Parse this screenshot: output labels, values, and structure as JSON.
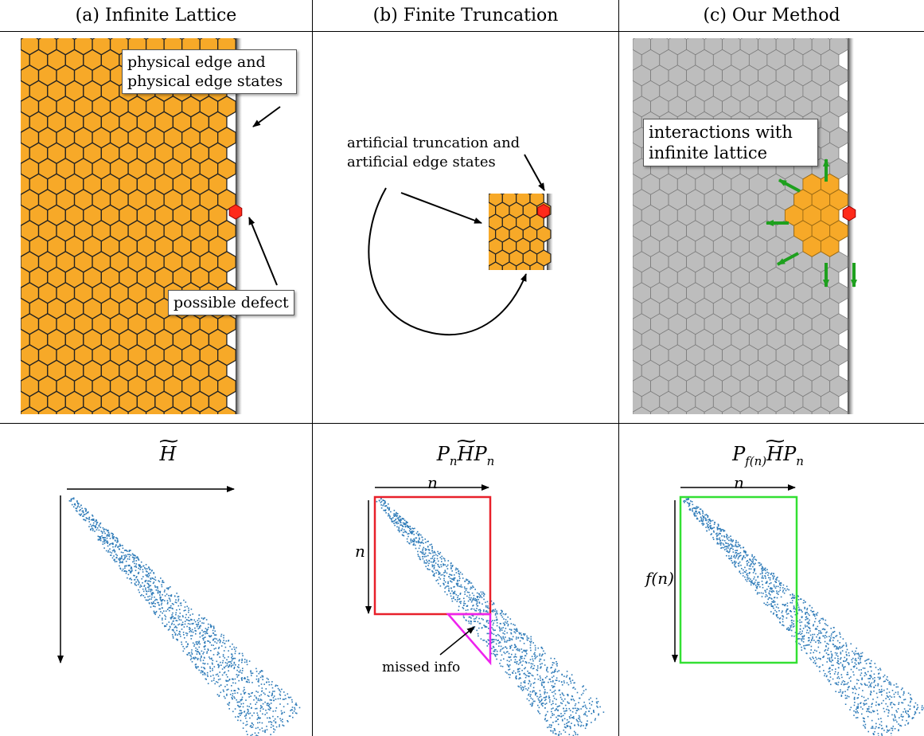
{
  "columns": [
    {
      "title": "(a) Infinite Lattice"
    },
    {
      "title": "(b) Finite Truncation"
    },
    {
      "title": "(c) Our Method"
    }
  ],
  "panel_a": {
    "callout_edge_line1": "physical edge and",
    "callout_edge_line2": "physical edge states",
    "callout_defect": "possible defect"
  },
  "panel_b": {
    "label_line1": "artificial truncation and",
    "label_line2": "artificial edge states"
  },
  "panel_c": {
    "callout_line1": "interactions with",
    "callout_line2": "infinite lattice"
  },
  "bottom": {
    "eq_a": {
      "main": "H"
    },
    "eq_b": {
      "p1": "P",
      "s1": "n",
      "h": "H",
      "p2": "P",
      "s2": "n"
    },
    "eq_c": {
      "p1": "P",
      "s1": "f(n)",
      "h": "H",
      "p2": "P",
      "s2": "n"
    },
    "n_label_b_top": "n",
    "n_label_b_side": "n",
    "n_label_c_top": "n",
    "fn_label_c_side": "f(n)",
    "missed_info": "missed info"
  },
  "colors": {
    "hex_fill": "#F7A928",
    "hex_gray": "#BDBDBD",
    "defect": "#FF2A1A",
    "arrow_green": "#1EA01E",
    "box_red": "#E8202A",
    "triangle_magenta": "#EE22EE",
    "box_green": "#33E033",
    "scatter_blue": "#2E7BB8"
  }
}
